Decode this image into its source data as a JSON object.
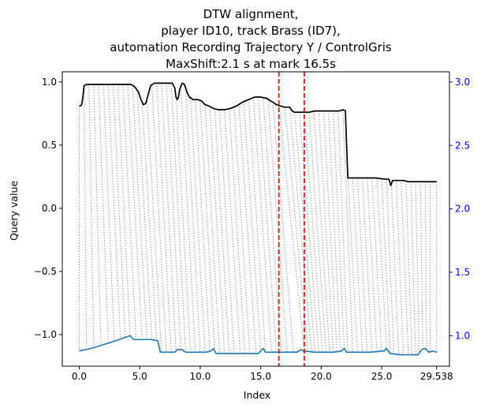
{
  "chart_data": {
    "type": "line",
    "title": [
      "DTW alignment,",
      "player ID10, track Brass (ID7),",
      "automation Recording Trajectory Y / ControlGris",
      "MaxShift:2.1 s at mark 16.5s"
    ],
    "xlabel": "Index",
    "ylabel_left": "Query value",
    "ylabel_right": "",
    "xlim": [
      -1.4,
      30.6
    ],
    "ylim_left": [
      -1.25,
      1.08
    ],
    "ylim_right": [
      0.76,
      3.08
    ],
    "x_ticks": [
      0,
      5,
      10,
      15,
      20,
      25,
      29.538
    ],
    "x_tick_labels": [
      "0.0",
      "5.0",
      "10.0",
      "15.0",
      "20.0",
      "25.0",
      "29.538"
    ],
    "y_left_ticks": [
      1.0,
      0.5,
      0.0,
      -0.5,
      -1.0
    ],
    "y_left_tick_labels": [
      "1.0",
      "0.5",
      "0.0",
      "−0.5",
      "−1.0"
    ],
    "y_right_ticks": [
      3.0,
      2.5,
      2.0,
      1.5,
      1.0
    ],
    "y_right_tick_labels": [
      "3.0",
      "2.5",
      "2.0",
      "1.5",
      "1.0"
    ],
    "vlines_x": [
      16.5,
      18.6
    ],
    "series": [
      {
        "role": "query",
        "axis": "left",
        "color": "#000000",
        "points": [
          [
            0.0,
            0.81
          ],
          [
            0.1,
            0.81
          ],
          [
            0.2,
            0.82
          ],
          [
            0.3,
            0.88
          ],
          [
            0.4,
            0.97
          ],
          [
            0.6,
            0.98
          ],
          [
            1.5,
            0.98
          ],
          [
            2.5,
            0.98
          ],
          [
            3.5,
            0.98
          ],
          [
            4.3,
            0.98
          ],
          [
            4.6,
            0.96
          ],
          [
            4.9,
            0.92
          ],
          [
            5.1,
            0.86
          ],
          [
            5.3,
            0.82
          ],
          [
            5.5,
            0.83
          ],
          [
            5.7,
            0.9
          ],
          [
            5.9,
            0.97
          ],
          [
            6.2,
            0.99
          ],
          [
            7.0,
            0.99
          ],
          [
            7.7,
            0.99
          ],
          [
            7.9,
            0.95
          ],
          [
            8.0,
            0.88
          ],
          [
            8.1,
            0.86
          ],
          [
            8.2,
            0.88
          ],
          [
            8.3,
            0.94
          ],
          [
            8.5,
            0.99
          ],
          [
            8.7,
            0.98
          ],
          [
            8.9,
            0.92
          ],
          [
            9.1,
            0.88
          ],
          [
            9.4,
            0.86
          ],
          [
            9.8,
            0.86
          ],
          [
            10.1,
            0.85
          ],
          [
            10.4,
            0.82
          ],
          [
            10.7,
            0.81
          ],
          [
            11.1,
            0.79
          ],
          [
            11.5,
            0.78
          ],
          [
            12.0,
            0.78
          ],
          [
            12.5,
            0.79
          ],
          [
            13.0,
            0.81
          ],
          [
            13.5,
            0.84
          ],
          [
            14.0,
            0.86
          ],
          [
            14.5,
            0.88
          ],
          [
            15.0,
            0.88
          ],
          [
            15.5,
            0.87
          ],
          [
            15.8,
            0.85
          ],
          [
            16.0,
            0.84
          ],
          [
            16.3,
            0.82
          ],
          [
            16.6,
            0.81
          ],
          [
            17.0,
            0.8
          ],
          [
            17.4,
            0.8
          ],
          [
            17.6,
            0.77
          ],
          [
            17.8,
            0.76
          ],
          [
            18.5,
            0.76
          ],
          [
            19.0,
            0.76
          ],
          [
            19.5,
            0.77
          ],
          [
            20.5,
            0.77
          ],
          [
            21.5,
            0.77
          ],
          [
            21.8,
            0.78
          ],
          [
            22.0,
            0.77
          ],
          [
            22.1,
            0.5
          ],
          [
            22.2,
            0.24
          ],
          [
            22.6,
            0.24
          ],
          [
            23.5,
            0.24
          ],
          [
            24.5,
            0.24
          ],
          [
            25.3,
            0.23
          ],
          [
            25.6,
            0.23
          ],
          [
            25.75,
            0.18
          ],
          [
            25.9,
            0.22
          ],
          [
            26.1,
            0.22
          ],
          [
            26.8,
            0.22
          ],
          [
            27.2,
            0.21
          ],
          [
            28.0,
            0.21
          ],
          [
            29.538,
            0.21
          ]
        ]
      },
      {
        "role": "reference",
        "axis": "right",
        "color": "#1f77b4",
        "points": [
          [
            0.0,
            0.88
          ],
          [
            1.0,
            0.9
          ],
          [
            2.0,
            0.93
          ],
          [
            3.0,
            0.96
          ],
          [
            4.2,
            1.0
          ],
          [
            4.5,
            0.97
          ],
          [
            6.0,
            0.97
          ],
          [
            6.5,
            0.96
          ],
          [
            6.7,
            0.87
          ],
          [
            7.5,
            0.87
          ],
          [
            7.9,
            0.87
          ],
          [
            8.1,
            0.89
          ],
          [
            8.5,
            0.89
          ],
          [
            8.8,
            0.87
          ],
          [
            9.5,
            0.87
          ],
          [
            10.5,
            0.87
          ],
          [
            10.9,
            0.88
          ],
          [
            11.1,
            0.9
          ],
          [
            11.3,
            0.86
          ],
          [
            12.0,
            0.86
          ],
          [
            13.5,
            0.86
          ],
          [
            14.8,
            0.86
          ],
          [
            15.0,
            0.88
          ],
          [
            15.2,
            0.9
          ],
          [
            15.4,
            0.87
          ],
          [
            16.0,
            0.87
          ],
          [
            17.5,
            0.87
          ],
          [
            18.0,
            0.87
          ],
          [
            18.3,
            0.89
          ],
          [
            18.5,
            0.88
          ],
          [
            19.5,
            0.87
          ],
          [
            21.0,
            0.87
          ],
          [
            21.7,
            0.88
          ],
          [
            21.9,
            0.9
          ],
          [
            22.1,
            0.87
          ],
          [
            23.0,
            0.87
          ],
          [
            24.0,
            0.87
          ],
          [
            25.2,
            0.88
          ],
          [
            25.4,
            0.9
          ],
          [
            25.7,
            0.86
          ],
          [
            26.5,
            0.85
          ],
          [
            27.5,
            0.85
          ],
          [
            28.0,
            0.85
          ],
          [
            28.3,
            0.89
          ],
          [
            28.6,
            0.9
          ],
          [
            28.9,
            0.87
          ],
          [
            29.2,
            0.88
          ],
          [
            29.538,
            0.87
          ]
        ]
      }
    ],
    "alignment_lines": {
      "style": "dotted",
      "color": "#808080",
      "pairs": [
        [
          0,
          0
        ],
        [
          0.4,
          0.6
        ],
        [
          0.8,
          1.2
        ],
        [
          1.2,
          1.8
        ],
        [
          1.6,
          2.4
        ],
        [
          2.0,
          2.9
        ],
        [
          2.4,
          3.4
        ],
        [
          2.8,
          3.8
        ],
        [
          3.2,
          4.2
        ],
        [
          3.6,
          4.7
        ],
        [
          4.0,
          5.2
        ],
        [
          4.4,
          5.6
        ],
        [
          4.8,
          6.0
        ],
        [
          5.2,
          6.4
        ],
        [
          5.6,
          6.8
        ],
        [
          6.0,
          7.2
        ],
        [
          6.4,
          7.6
        ],
        [
          6.8,
          8.0
        ],
        [
          7.2,
          8.4
        ],
        [
          7.6,
          8.8
        ],
        [
          8.0,
          9.2
        ],
        [
          8.4,
          9.6
        ],
        [
          8.8,
          10.0
        ],
        [
          9.2,
          10.4
        ],
        [
          9.6,
          10.8
        ],
        [
          10.0,
          11.2
        ],
        [
          10.4,
          11.6
        ],
        [
          10.8,
          12.0
        ],
        [
          11.2,
          12.4
        ],
        [
          11.6,
          12.8
        ],
        [
          12.0,
          13.3
        ],
        [
          12.4,
          13.7
        ],
        [
          12.8,
          14.1
        ],
        [
          13.2,
          14.6
        ],
        [
          13.6,
          15.0
        ],
        [
          14.0,
          15.4
        ],
        [
          14.4,
          15.9
        ],
        [
          14.8,
          16.3
        ],
        [
          15.2,
          16.7
        ],
        [
          15.6,
          17.2
        ],
        [
          16.0,
          17.7
        ],
        [
          16.5,
          18.6
        ],
        [
          17.0,
          18.9
        ],
        [
          17.4,
          19.2
        ],
        [
          17.8,
          19.5
        ],
        [
          18.2,
          19.8
        ],
        [
          18.6,
          20.1
        ],
        [
          19.0,
          20.4
        ],
        [
          19.4,
          20.7
        ],
        [
          19.8,
          21.0
        ],
        [
          20.2,
          21.3
        ],
        [
          20.6,
          21.6
        ],
        [
          21.0,
          21.9
        ],
        [
          21.4,
          22.2
        ],
        [
          21.8,
          22.6
        ],
        [
          22.2,
          23.0
        ],
        [
          22.6,
          23.4
        ],
        [
          23.0,
          23.8
        ],
        [
          23.4,
          24.2
        ],
        [
          23.8,
          24.6
        ],
        [
          24.2,
          25.0
        ],
        [
          24.6,
          25.4
        ],
        [
          25.0,
          25.7
        ],
        [
          25.4,
          26.0
        ],
        [
          25.8,
          26.4
        ],
        [
          26.2,
          26.8
        ],
        [
          26.6,
          27.2
        ],
        [
          27.0,
          27.5
        ],
        [
          27.4,
          27.8
        ],
        [
          27.8,
          28.1
        ],
        [
          28.2,
          28.4
        ],
        [
          28.6,
          28.7
        ],
        [
          29.0,
          29.0
        ],
        [
          29.538,
          29.538
        ]
      ]
    }
  },
  "colors": {
    "query_line": "#000000",
    "reference_line": "#1f77b4",
    "vline": "#ff0000",
    "alignment": "#808080",
    "right_axis": "#0000ff"
  }
}
